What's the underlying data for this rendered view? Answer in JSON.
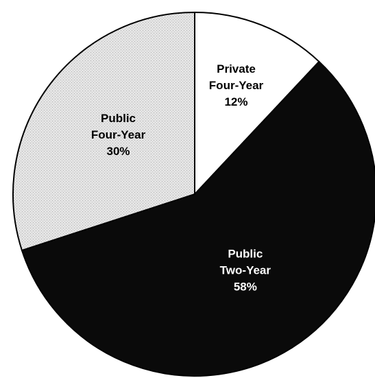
{
  "chart_data": {
    "type": "pie",
    "categories": [
      "Private Four-Year",
      "Public Two-Year",
      "Public Four-Year"
    ],
    "values": [
      12,
      58,
      30
    ],
    "value_labels": [
      "12%",
      "58%",
      "30%"
    ],
    "colors": [
      "#ffffff",
      "#0a0a0a",
      "#dcdcdc"
    ],
    "start_angle": 0,
    "direction": "clockwise"
  }
}
